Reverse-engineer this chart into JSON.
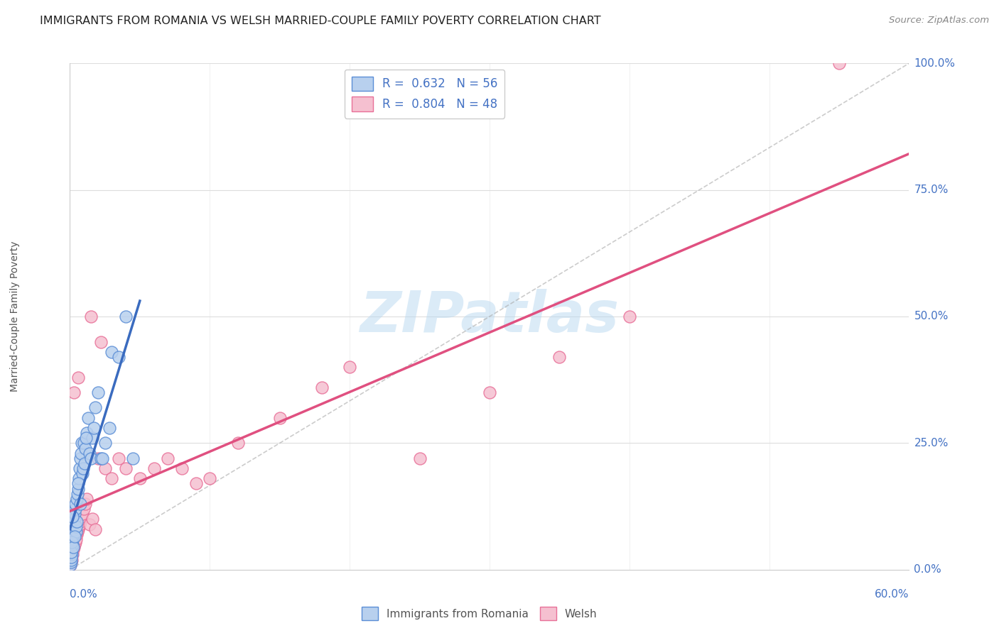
{
  "title": "IMMIGRANTS FROM ROMANIA VS WELSH MARRIED-COUPLE FAMILY POVERTY CORRELATION CHART",
  "source": "Source: ZipAtlas.com",
  "xlabel_bottom_left": "0.0%",
  "xlabel_bottom_right": "60.0%",
  "ylabel": "Married-Couple Family Poverty",
  "ytick_labels": [
    "0.0%",
    "25.0%",
    "50.0%",
    "75.0%",
    "100.0%"
  ],
  "ytick_values": [
    0.0,
    25.0,
    50.0,
    75.0,
    100.0
  ],
  "xmin": 0.0,
  "xmax": 60.0,
  "ymin": 0.0,
  "ymax": 100.0,
  "romania_R": 0.632,
  "romania_N": 56,
  "welsh_R": 0.804,
  "welsh_N": 48,
  "romania_color": "#b8d0ee",
  "romania_edge_color": "#5b8ed6",
  "romania_line_color": "#3a6bbf",
  "welsh_color": "#f5c0d0",
  "welsh_edge_color": "#e87098",
  "welsh_line_color": "#e05080",
  "legend_label_romania": "Immigrants from Romania",
  "legend_label_welsh": "Welsh",
  "watermark_text": "ZIPatlas",
  "watermark_color": "#b8d8f0",
  "background_color": "#ffffff",
  "grid_color": "#dddddd",
  "title_color": "#222222",
  "axis_label_color": "#4472c4",
  "right_label_color": "#4472c4",
  "romania_scatter_x": [
    0.05,
    0.08,
    0.1,
    0.12,
    0.15,
    0.18,
    0.2,
    0.22,
    0.25,
    0.28,
    0.3,
    0.32,
    0.35,
    0.38,
    0.4,
    0.42,
    0.45,
    0.48,
    0.5,
    0.55,
    0.6,
    0.65,
    0.7,
    0.75,
    0.8,
    0.85,
    0.9,
    0.95,
    1.0,
    1.05,
    1.1,
    1.2,
    1.3,
    1.4,
    1.5,
    1.6,
    1.7,
    1.8,
    2.0,
    2.2,
    2.5,
    2.8,
    3.0,
    3.5,
    4.0,
    4.5,
    0.06,
    0.09,
    0.13,
    0.17,
    0.24,
    0.33,
    0.58,
    0.72,
    1.15,
    2.3
  ],
  "romania_scatter_y": [
    1.0,
    1.5,
    2.0,
    3.0,
    4.0,
    5.0,
    6.0,
    6.5,
    7.0,
    8.0,
    9.0,
    10.0,
    11.0,
    12.0,
    13.0,
    7.5,
    8.5,
    9.5,
    14.0,
    15.0,
    16.0,
    18.0,
    20.0,
    22.0,
    23.0,
    25.0,
    19.0,
    20.0,
    25.0,
    21.0,
    24.0,
    27.0,
    30.0,
    23.0,
    22.0,
    26.0,
    28.0,
    32.0,
    35.0,
    22.0,
    25.0,
    28.0,
    43.0,
    42.0,
    50.0,
    22.0,
    2.5,
    3.5,
    5.5,
    10.5,
    4.5,
    6.5,
    17.0,
    13.0,
    26.0,
    22.0
  ],
  "welsh_scatter_x": [
    0.05,
    0.1,
    0.15,
    0.2,
    0.25,
    0.3,
    0.35,
    0.4,
    0.45,
    0.5,
    0.55,
    0.6,
    0.65,
    0.7,
    0.75,
    0.8,
    0.85,
    0.9,
    1.0,
    1.1,
    1.2,
    1.4,
    1.6,
    1.8,
    2.0,
    2.5,
    3.0,
    3.5,
    4.0,
    5.0,
    6.0,
    7.0,
    8.0,
    9.0,
    10.0,
    12.0,
    15.0,
    18.0,
    20.0,
    25.0,
    30.0,
    35.0,
    40.0,
    55.0,
    0.3,
    0.6,
    1.5,
    2.2
  ],
  "welsh_scatter_y": [
    1.0,
    1.5,
    2.0,
    3.0,
    4.0,
    4.5,
    5.0,
    5.5,
    6.0,
    7.0,
    7.5,
    8.0,
    8.5,
    9.0,
    9.5,
    10.0,
    10.5,
    11.0,
    12.0,
    13.0,
    14.0,
    9.0,
    10.0,
    8.0,
    22.0,
    20.0,
    18.0,
    22.0,
    20.0,
    18.0,
    20.0,
    22.0,
    20.0,
    17.0,
    18.0,
    25.0,
    30.0,
    36.0,
    40.0,
    22.0,
    35.0,
    42.0,
    50.0,
    100.0,
    35.0,
    38.0,
    50.0,
    45.0
  ],
  "diag_line_color": "#aaaaaa",
  "romania_line_x_start": 0.0,
  "romania_line_x_end": 5.0,
  "welsh_line_x_start": 0.0,
  "welsh_line_x_end": 60.0
}
